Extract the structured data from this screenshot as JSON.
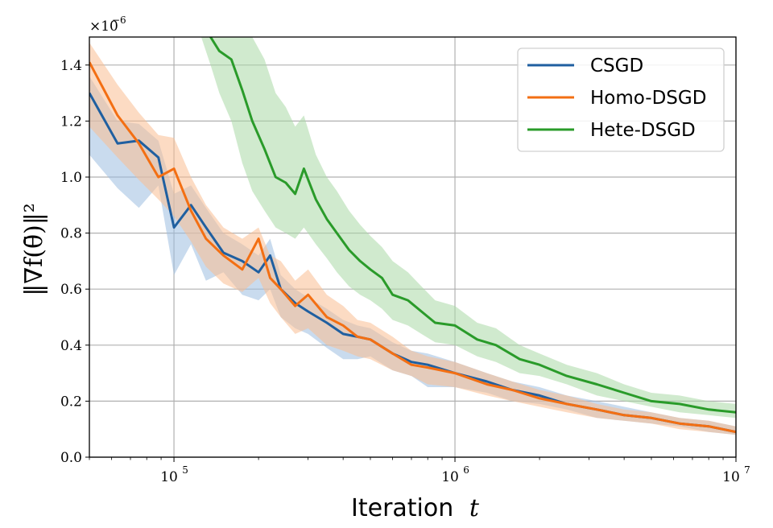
{
  "chart_data": {
    "type": "line",
    "xlabel": "Iteration",
    "xlabel_var": "t",
    "ylabel": "‖∇f(θ̄)‖²",
    "y_scale_label": "×10",
    "y_scale_exp": "−6",
    "x_scale": "log",
    "xlim": [
      50000,
      10000000
    ],
    "ylim": [
      0.0,
      1.5
    ],
    "grid": true,
    "legend_position": "top-right",
    "x_ticks": [
      {
        "value": 100000,
        "base": "10",
        "exp": "5"
      },
      {
        "value": 1000000,
        "base": "10",
        "exp": "6"
      },
      {
        "value": 10000000,
        "base": "10",
        "exp": "7"
      }
    ],
    "y_ticks": [
      "0.0",
      "0.2",
      "0.4",
      "0.6",
      "0.8",
      "1.0",
      "1.2",
      "1.4"
    ],
    "series": [
      {
        "name": "CSGD",
        "color": "#1f5fa0",
        "band_color": "#9dbde0",
        "x": [
          50000,
          63000,
          75000,
          88000,
          100000,
          115000,
          130000,
          150000,
          175000,
          200000,
          220000,
          240000,
          270000,
          300000,
          350000,
          400000,
          450000,
          500000,
          600000,
          700000,
          800000,
          1000000,
          1300000,
          1600000,
          2000000,
          2500000,
          3200000,
          4000000,
          5000000,
          6300000,
          8000000,
          10000000
        ],
        "y": [
          1.3,
          1.12,
          1.13,
          1.07,
          0.82,
          0.9,
          0.82,
          0.73,
          0.7,
          0.66,
          0.72,
          0.6,
          0.55,
          0.52,
          0.48,
          0.44,
          0.43,
          0.42,
          0.37,
          0.34,
          0.33,
          0.3,
          0.27,
          0.24,
          0.22,
          0.19,
          0.17,
          0.15,
          0.14,
          0.12,
          0.11,
          0.09
        ],
        "upper": [
          1.36,
          1.2,
          1.19,
          1.13,
          0.94,
          0.97,
          0.89,
          0.8,
          0.76,
          0.72,
          0.78,
          0.65,
          0.6,
          0.57,
          0.53,
          0.49,
          0.47,
          0.46,
          0.41,
          0.38,
          0.37,
          0.34,
          0.3,
          0.27,
          0.25,
          0.22,
          0.2,
          0.18,
          0.16,
          0.14,
          0.13,
          0.11
        ],
        "lower": [
          1.08,
          0.96,
          0.89,
          0.97,
          0.65,
          0.76,
          0.63,
          0.66,
          0.58,
          0.56,
          0.6,
          0.5,
          0.46,
          0.44,
          0.39,
          0.35,
          0.35,
          0.36,
          0.31,
          0.29,
          0.25,
          0.25,
          0.23,
          0.2,
          0.19,
          0.17,
          0.14,
          0.13,
          0.12,
          0.11,
          0.09,
          0.08
        ]
      },
      {
        "name": "Homo-DSGD",
        "color": "#f36f13",
        "band_color": "#f9bd91",
        "x": [
          50000,
          63000,
          75000,
          88000,
          100000,
          115000,
          130000,
          150000,
          175000,
          200000,
          220000,
          240000,
          270000,
          300000,
          350000,
          400000,
          450000,
          500000,
          600000,
          700000,
          800000,
          1000000,
          1300000,
          1600000,
          2000000,
          2500000,
          3200000,
          4000000,
          5000000,
          6300000,
          8000000,
          10000000
        ],
        "y": [
          1.41,
          1.22,
          1.12,
          1.0,
          1.03,
          0.88,
          0.78,
          0.72,
          0.67,
          0.78,
          0.64,
          0.6,
          0.54,
          0.58,
          0.5,
          0.47,
          0.43,
          0.42,
          0.37,
          0.33,
          0.32,
          0.3,
          0.26,
          0.24,
          0.21,
          0.19,
          0.17,
          0.15,
          0.14,
          0.12,
          0.11,
          0.09
        ],
        "upper": [
          1.48,
          1.33,
          1.23,
          1.15,
          1.14,
          1.0,
          0.9,
          0.82,
          0.78,
          0.82,
          0.72,
          0.7,
          0.63,
          0.67,
          0.58,
          0.54,
          0.49,
          0.48,
          0.43,
          0.38,
          0.36,
          0.34,
          0.3,
          0.27,
          0.24,
          0.22,
          0.19,
          0.17,
          0.16,
          0.14,
          0.13,
          0.11
        ],
        "lower": [
          1.18,
          1.07,
          0.99,
          0.92,
          0.86,
          0.77,
          0.68,
          0.62,
          0.59,
          0.64,
          0.55,
          0.5,
          0.44,
          0.46,
          0.4,
          0.38,
          0.36,
          0.35,
          0.31,
          0.29,
          0.26,
          0.25,
          0.22,
          0.2,
          0.18,
          0.16,
          0.14,
          0.13,
          0.12,
          0.1,
          0.09,
          0.08
        ]
      },
      {
        "name": "Hete-DSGD",
        "color": "#2a9b2a",
        "band_color": "#aad8a6",
        "x": [
          125000,
          135000,
          145000,
          160000,
          175000,
          190000,
          210000,
          230000,
          250000,
          270000,
          290000,
          320000,
          350000,
          380000,
          420000,
          460000,
          500000,
          550000,
          600000,
          680000,
          760000,
          850000,
          1000000,
          1200000,
          1400000,
          1700000,
          2000000,
          2500000,
          3200000,
          4000000,
          5000000,
          6300000,
          8000000,
          10000000
        ],
        "y": [
          1.55,
          1.5,
          1.45,
          1.42,
          1.31,
          1.2,
          1.1,
          1.0,
          0.98,
          0.94,
          1.03,
          0.92,
          0.85,
          0.8,
          0.74,
          0.7,
          0.67,
          0.64,
          0.58,
          0.56,
          0.52,
          0.48,
          0.47,
          0.42,
          0.4,
          0.35,
          0.33,
          0.29,
          0.26,
          0.23,
          0.2,
          0.19,
          0.17,
          0.16
        ],
        "upper": [
          1.6,
          1.6,
          1.6,
          1.6,
          1.55,
          1.5,
          1.42,
          1.3,
          1.25,
          1.18,
          1.22,
          1.08,
          1.0,
          0.95,
          0.88,
          0.83,
          0.79,
          0.75,
          0.7,
          0.66,
          0.61,
          0.56,
          0.54,
          0.48,
          0.46,
          0.4,
          0.37,
          0.33,
          0.3,
          0.26,
          0.23,
          0.22,
          0.2,
          0.19
        ],
        "lower": [
          1.5,
          1.4,
          1.3,
          1.2,
          1.05,
          0.95,
          0.88,
          0.82,
          0.8,
          0.78,
          0.82,
          0.76,
          0.71,
          0.66,
          0.61,
          0.58,
          0.56,
          0.53,
          0.49,
          0.47,
          0.44,
          0.41,
          0.4,
          0.36,
          0.34,
          0.3,
          0.29,
          0.26,
          0.22,
          0.2,
          0.18,
          0.16,
          0.15,
          0.14
        ]
      }
    ]
  }
}
